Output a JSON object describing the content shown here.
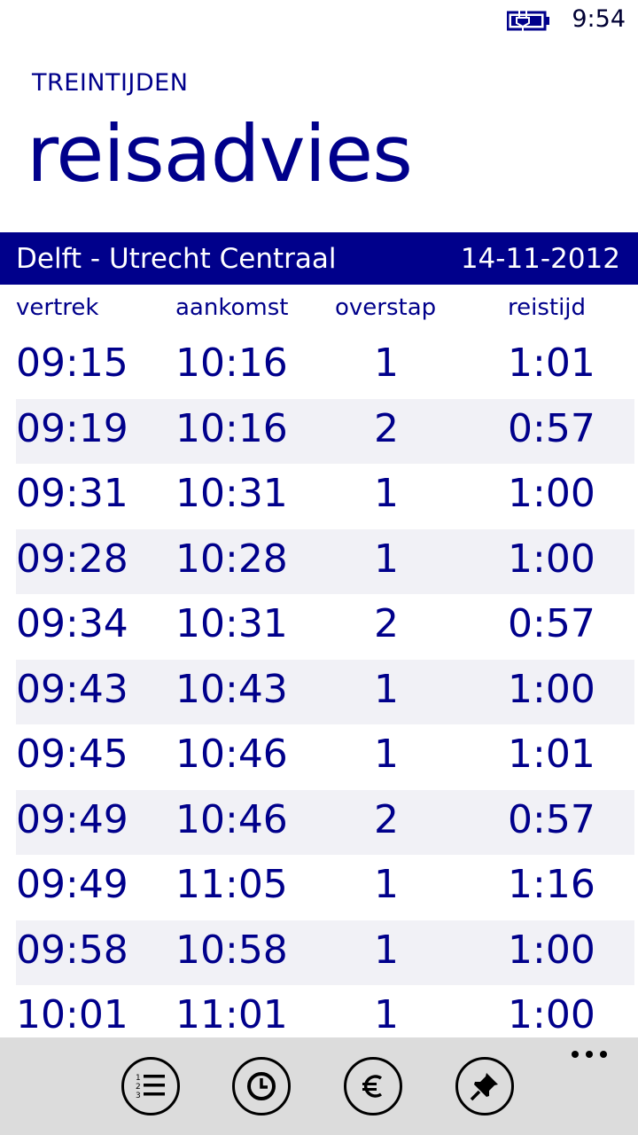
{
  "status": {
    "time": "9:54"
  },
  "header": {
    "app_title": "TREINTIJDEN",
    "page_title": "reisadvies"
  },
  "route": {
    "name": "Delft - Utrecht Centraal",
    "date": "14-11-2012"
  },
  "columns": {
    "departure": "vertrek",
    "arrival": "aankomst",
    "transfers": "overstap",
    "duration": "reistijd"
  },
  "trips": [
    {
      "departure": "09:15",
      "arrival": "10:16",
      "transfers": "1",
      "duration": "1:01"
    },
    {
      "departure": "09:19",
      "arrival": "10:16",
      "transfers": "2",
      "duration": "0:57"
    },
    {
      "departure": "09:31",
      "arrival": "10:31",
      "transfers": "1",
      "duration": "1:00"
    },
    {
      "departure": "09:28",
      "arrival": "10:28",
      "transfers": "1",
      "duration": "1:00"
    },
    {
      "departure": "09:34",
      "arrival": "10:31",
      "transfers": "2",
      "duration": "0:57"
    },
    {
      "departure": "09:43",
      "arrival": "10:43",
      "transfers": "1",
      "duration": "1:00"
    },
    {
      "departure": "09:45",
      "arrival": "10:46",
      "transfers": "1",
      "duration": "1:01"
    },
    {
      "departure": "09:49",
      "arrival": "10:46",
      "transfers": "2",
      "duration": "0:57"
    },
    {
      "departure": "09:49",
      "arrival": "11:05",
      "transfers": "1",
      "duration": "1:16"
    },
    {
      "departure": "09:58",
      "arrival": "10:58",
      "transfers": "1",
      "duration": "1:00"
    },
    {
      "departure": "10:01",
      "arrival": "11:01",
      "transfers": "1",
      "duration": "1:00"
    }
  ],
  "app_bar": {
    "buttons": [
      {
        "icon": "numbered-list-icon"
      },
      {
        "icon": "clock-icon"
      },
      {
        "icon": "euro-icon"
      },
      {
        "icon": "pin-icon"
      }
    ],
    "more_icon": "ellipsis-icon"
  },
  "colors": {
    "accent": "#00008b",
    "alt_row": "#f1f1f6",
    "app_bar": "#dcdcdc"
  }
}
